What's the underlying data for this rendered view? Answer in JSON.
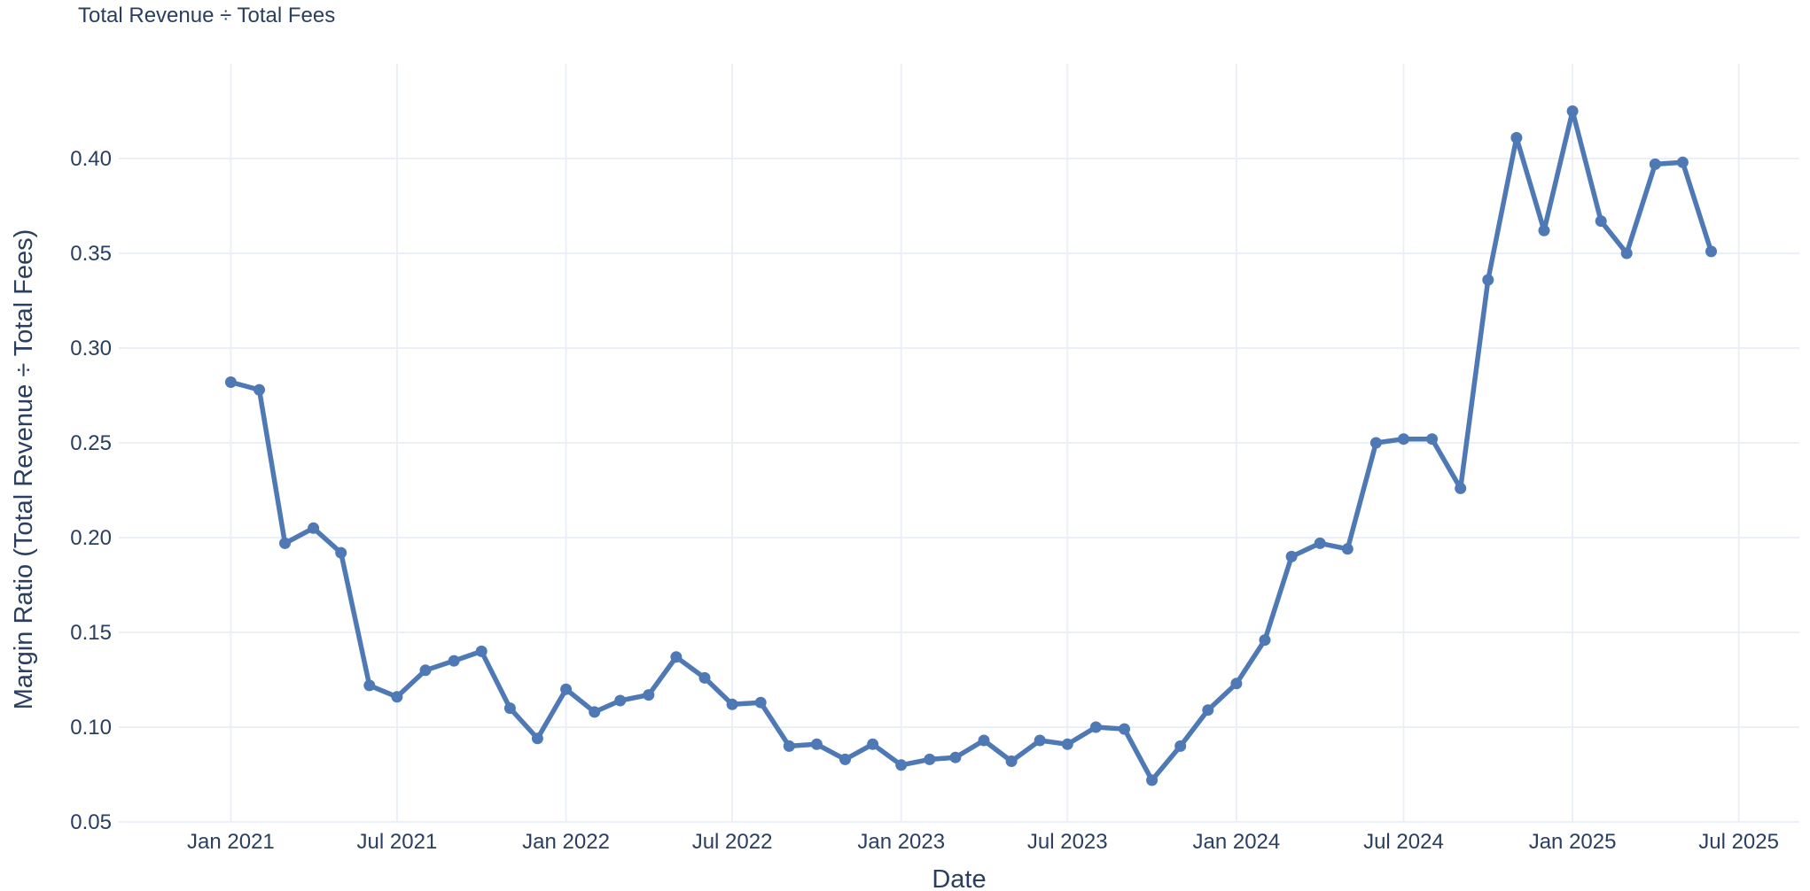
{
  "chart_data": {
    "type": "line",
    "subtitle": "Total Revenue ÷ Total Fees",
    "xlabel": "Date",
    "ylabel": "Margin Ratio (Total Revenue ÷ Total Fees)",
    "ylim": [
      0.05,
      0.45
    ],
    "xlim": [
      "2020-09-01",
      "2025-09-05"
    ],
    "grid": true,
    "line_color": "#4e79b4",
    "grid_color": "#ebf0f8",
    "x_ticks": [
      {
        "date": "2021-01-01",
        "label": "Jan 2021"
      },
      {
        "date": "2021-07-01",
        "label": "Jul 2021"
      },
      {
        "date": "2022-01-01",
        "label": "Jan 2022"
      },
      {
        "date": "2022-07-01",
        "label": "Jul 2022"
      },
      {
        "date": "2023-01-01",
        "label": "Jan 2023"
      },
      {
        "date": "2023-07-01",
        "label": "Jul 2023"
      },
      {
        "date": "2024-01-01",
        "label": "Jan 2024"
      },
      {
        "date": "2024-07-01",
        "label": "Jul 2024"
      },
      {
        "date": "2025-01-01",
        "label": "Jan 2025"
      },
      {
        "date": "2025-07-01",
        "label": "Jul 2025"
      }
    ],
    "y_ticks": [
      {
        "value": 0.05,
        "label": "0.05"
      },
      {
        "value": 0.1,
        "label": "0.10"
      },
      {
        "value": 0.15,
        "label": "0.15"
      },
      {
        "value": 0.2,
        "label": "0.20"
      },
      {
        "value": 0.25,
        "label": "0.25"
      },
      {
        "value": 0.3,
        "label": "0.30"
      },
      {
        "value": 0.35,
        "label": "0.35"
      },
      {
        "value": 0.4,
        "label": "0.40"
      }
    ],
    "x": [
      "2021-01-01",
      "2021-02-01",
      "2021-03-01",
      "2021-04-01",
      "2021-05-01",
      "2021-06-01",
      "2021-07-01",
      "2021-08-01",
      "2021-09-01",
      "2021-10-01",
      "2021-11-01",
      "2021-12-01",
      "2022-01-01",
      "2022-02-01",
      "2022-03-01",
      "2022-04-01",
      "2022-05-01",
      "2022-06-01",
      "2022-07-01",
      "2022-08-01",
      "2022-09-01",
      "2022-10-01",
      "2022-11-01",
      "2022-12-01",
      "2023-01-01",
      "2023-02-01",
      "2023-03-01",
      "2023-04-01",
      "2023-05-01",
      "2023-06-01",
      "2023-07-01",
      "2023-08-01",
      "2023-09-01",
      "2023-10-01",
      "2023-11-01",
      "2023-12-01",
      "2024-01-01",
      "2024-02-01",
      "2024-03-01",
      "2024-04-01",
      "2024-05-01",
      "2024-06-01",
      "2024-07-01",
      "2024-08-01",
      "2024-09-01",
      "2024-10-01",
      "2024-11-01",
      "2024-12-01",
      "2025-01-01",
      "2025-02-01",
      "2025-03-01",
      "2025-04-01",
      "2025-05-01",
      "2025-06-01"
    ],
    "values": [
      0.282,
      0.278,
      0.197,
      0.205,
      0.192,
      0.122,
      0.116,
      0.13,
      0.135,
      0.14,
      0.11,
      0.094,
      0.12,
      0.108,
      0.114,
      0.117,
      0.137,
      0.126,
      0.112,
      0.113,
      0.09,
      0.091,
      0.083,
      0.091,
      0.08,
      0.083,
      0.084,
      0.093,
      0.082,
      0.093,
      0.091,
      0.1,
      0.099,
      0.072,
      0.09,
      0.109,
      0.123,
      0.146,
      0.19,
      0.197,
      0.194,
      0.25,
      0.252,
      0.252,
      0.226,
      0.336,
      0.411,
      0.362,
      0.425,
      0.367,
      0.35,
      0.397,
      0.398,
      0.351
    ]
  }
}
